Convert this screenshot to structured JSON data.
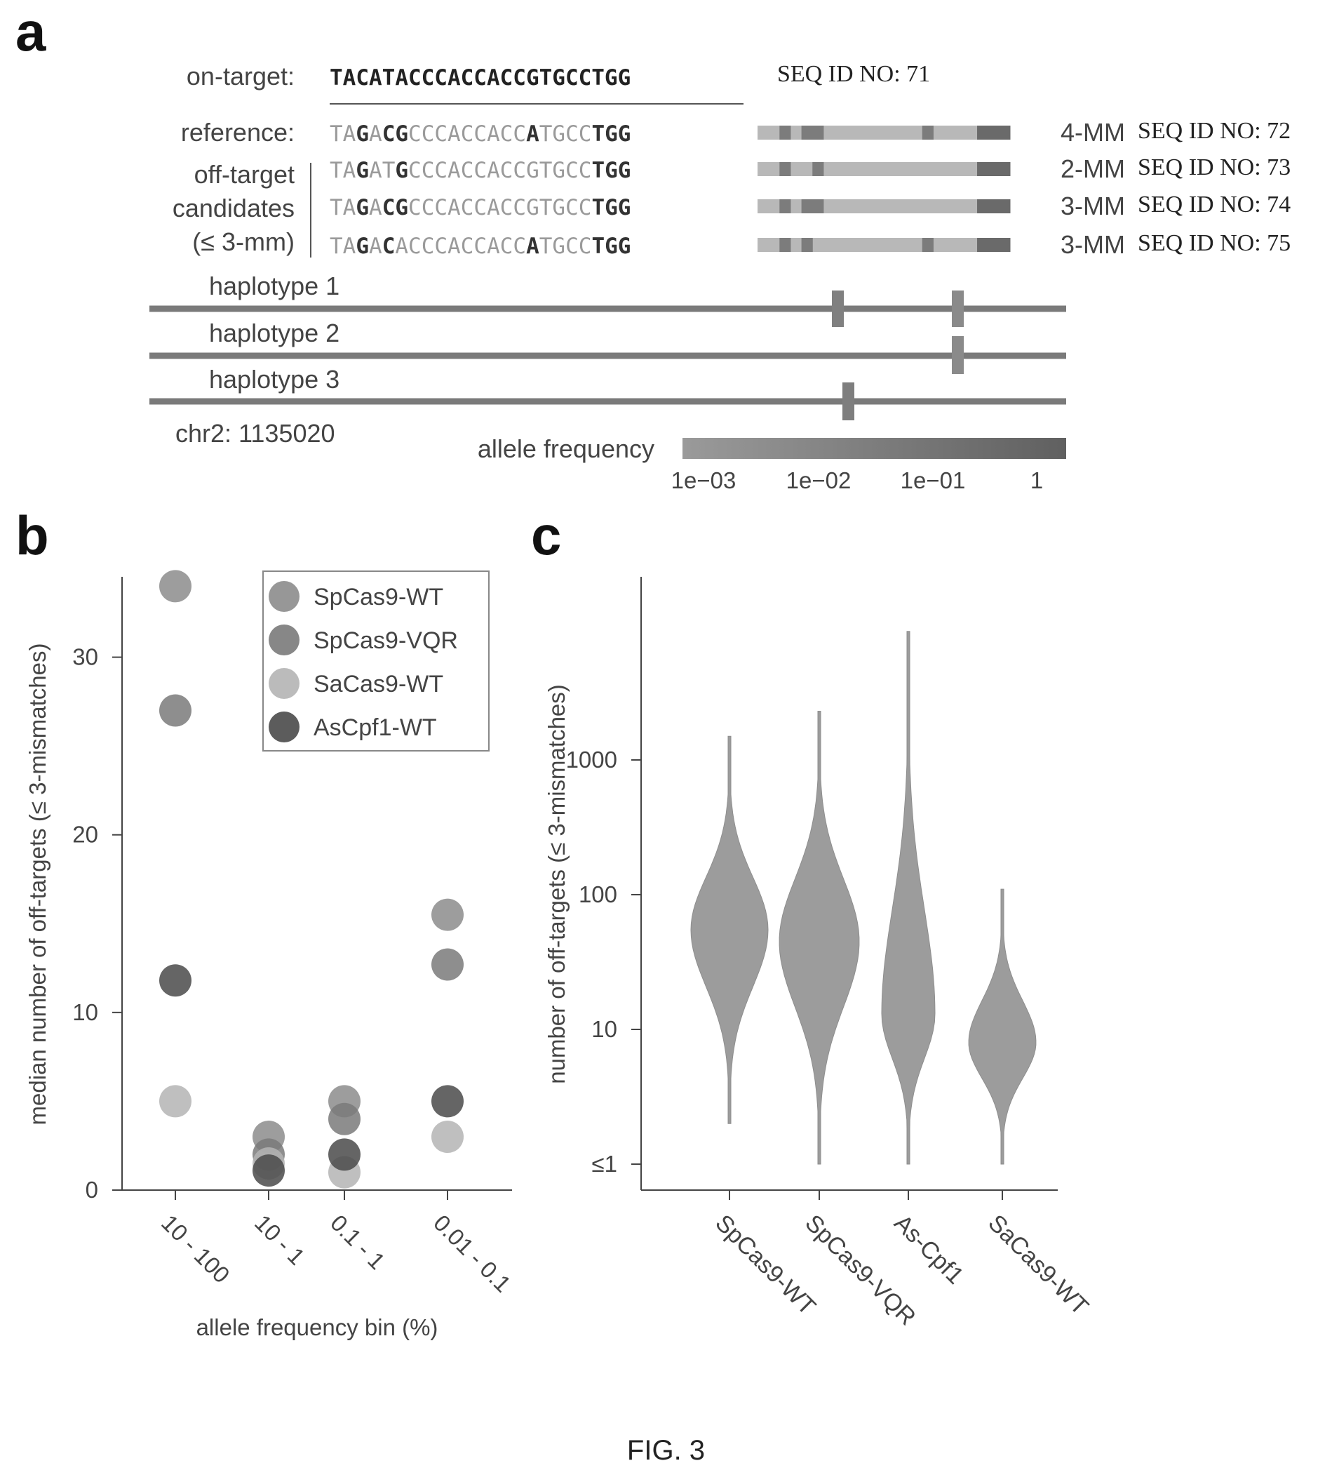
{
  "caption": "FIG. 3",
  "panels": {
    "a": "a",
    "b": "b",
    "c": "c"
  },
  "panel_a": {
    "on_target_label": "on-target:",
    "on_target_seq": "TACATACCCACCACCGTGCCTGG",
    "on_target_id": "SEQ ID NO: 71",
    "reference_label": "reference:",
    "candidates_label": [
      "off-target",
      "candidates",
      "(≤ 3-mm)"
    ],
    "sequences": [
      {
        "seq": "TAGACGCCCACCACCATGCCTGG",
        "bold": [
          2,
          4,
          5,
          15,
          20,
          21,
          22
        ],
        "mm": "4-MM",
        "id": "SEQ ID NO: 72"
      },
      {
        "seq": "TAGATGCCCACCACCGTGCCTGG",
        "bold": [
          2,
          5,
          20,
          21,
          22
        ],
        "mm": "2-MM",
        "id": "SEQ ID NO: 73"
      },
      {
        "seq": "TAGACGCCCACCACCGTGCCTGG",
        "bold": [
          2,
          4,
          5,
          20,
          21,
          22
        ],
        "mm": "3-MM",
        "id": "SEQ ID NO: 74"
      },
      {
        "seq": "TAGACACCCACCACCATGCCTGG",
        "bold": [
          2,
          4,
          15,
          20,
          21,
          22
        ],
        "mm": "3-MM",
        "id": "SEQ ID NO: 75"
      }
    ],
    "haplotypes": [
      "haplotype 1",
      "haplotype 2",
      "haplotype 3"
    ],
    "locus": "chr2: 1135020",
    "allele_frequency_label": "allele frequency",
    "allele_frequency_ticks": [
      "1e−03",
      "1e−02",
      "1e−01",
      "1"
    ]
  },
  "chart_data": [
    {
      "type": "scatter",
      "xlabel": "allele frequency bin (%)",
      "ylabel": "median number of off-targets (≤ 3-mismatches)",
      "categories": [
        "10 - 100",
        "10 - 1",
        "0.1 - 1",
        "0.01 - 0.1"
      ],
      "ylim": [
        0,
        35
      ],
      "yticks": [
        0,
        10,
        20,
        30
      ],
      "legend_position": "top-right",
      "series": [
        {
          "name": "SpCas9-WT",
          "color": "#8c8c8c",
          "values": [
            34,
            3,
            5,
            15.5
          ]
        },
        {
          "name": "SpCas9-VQR",
          "color": "#7a7a7a",
          "values": [
            27,
            2,
            4,
            12.7
          ]
        },
        {
          "name": "SaCas9-WT",
          "color": "#b4b4b4",
          "values": [
            5,
            1.5,
            1,
            3
          ]
        },
        {
          "name": "AsCpf1-WT",
          "color": "#4a4a4a",
          "values": [
            11.8,
            1.1,
            2,
            5
          ]
        }
      ]
    },
    {
      "type": "violin",
      "ylabel": "number of off-targets (≤ 3-mismatches)",
      "categories": [
        "SpCas9-WT",
        "SpCas9-VQR",
        "As-Cpf1",
        "SaCas9-WT"
      ],
      "yscale": "log",
      "ylim": [
        1,
        10000
      ],
      "yticks": [
        "≤1",
        "10",
        "100",
        "1000"
      ],
      "ytick_values": [
        1,
        10,
        100,
        1000
      ],
      "violins": [
        {
          "name": "SpCas9-WT",
          "min": 2,
          "max": 1500,
          "mode": 55
        },
        {
          "name": "SpCas9-VQR",
          "min": 1,
          "max": 2300,
          "mode": 45
        },
        {
          "name": "As-Cpf1",
          "min": 1,
          "max": 9000,
          "mode": 13
        },
        {
          "name": "SaCas9-WT",
          "min": 1,
          "max": 110,
          "mode": 8
        }
      ]
    }
  ]
}
